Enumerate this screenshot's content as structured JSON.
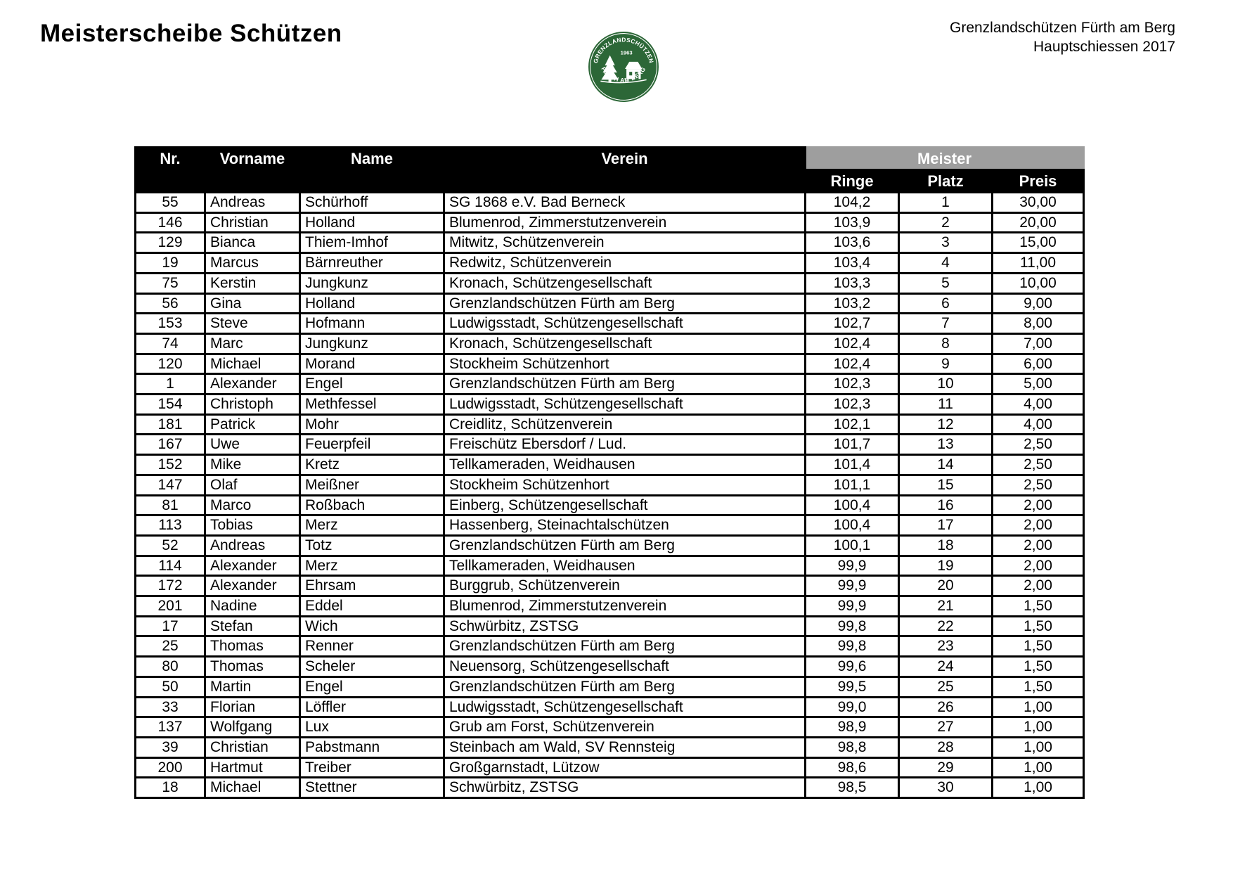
{
  "page": {
    "title": "Meisterscheibe Schützen",
    "org_line1": "Grenzlandschützen Fürth am Berg",
    "org_line2": "Hauptschiessen 2017"
  },
  "logo": {
    "text_top": "GRENZLANDSCHÜTZEN",
    "text_year": "1963",
    "text_bottom": "FÜRTH AM BERG",
    "color": "#2c6737"
  },
  "table": {
    "headers": [
      "Nr.",
      "Vorname",
      "Name",
      "Verein"
    ],
    "group_header": "Meister",
    "meister_headers": [
      "Ringe",
      "Platz",
      "Preis"
    ],
    "header_bg": "#000000",
    "group_header_bg": "#9e9e9e",
    "rows": [
      [
        "55",
        "Andreas",
        "Schürhoff",
        "SG 1868 e.V. Bad Berneck",
        "104,2",
        "1",
        "30,00"
      ],
      [
        "146",
        "Christian",
        "Holland",
        "Blumenrod, Zimmerstutzenverein",
        "103,9",
        "2",
        "20,00"
      ],
      [
        "129",
        "Bianca",
        "Thiem-Imhof",
        "Mitwitz, Schützenverein",
        "103,6",
        "3",
        "15,00"
      ],
      [
        "19",
        "Marcus",
        "Bärnreuther",
        "Redwitz, Schützenverein",
        "103,4",
        "4",
        "11,00"
      ],
      [
        "75",
        "Kerstin",
        "Jungkunz",
        "Kronach, Schützengesellschaft",
        "103,3",
        "5",
        "10,00"
      ],
      [
        "56",
        "Gina",
        "Holland",
        "Grenzlandschützen Fürth am Berg",
        "103,2",
        "6",
        "9,00"
      ],
      [
        "153",
        "Steve",
        "Hofmann",
        "Ludwigsstadt, Schützengesellschaft",
        "102,7",
        "7",
        "8,00"
      ],
      [
        "74",
        "Marc",
        "Jungkunz",
        "Kronach, Schützengesellschaft",
        "102,4",
        "8",
        "7,00"
      ],
      [
        "120",
        "Michael",
        "Morand",
        "Stockheim Schützenhort",
        "102,4",
        "9",
        "6,00"
      ],
      [
        "1",
        "Alexander",
        "Engel",
        "Grenzlandschützen Fürth am Berg",
        "102,3",
        "10",
        "5,00"
      ],
      [
        "154",
        "Christoph",
        "Methfessel",
        "Ludwigsstadt, Schützengesellschaft",
        "102,3",
        "11",
        "4,00"
      ],
      [
        "181",
        "Patrick",
        "Mohr",
        "Creidlitz, Schützenverein",
        "102,1",
        "12",
        "4,00"
      ],
      [
        "167",
        "Uwe",
        "Feuerpfeil",
        "Freischütz Ebersdorf / Lud.",
        "101,7",
        "13",
        "2,50"
      ],
      [
        "152",
        "Mike",
        "Kretz",
        "Tellkameraden, Weidhausen",
        "101,4",
        "14",
        "2,50"
      ],
      [
        "147",
        "Olaf",
        "Meißner",
        "Stockheim Schützenhort",
        "101,1",
        "15",
        "2,50"
      ],
      [
        "81",
        "Marco",
        "Roßbach",
        "Einberg, Schützengesellschaft",
        "100,4",
        "16",
        "2,00"
      ],
      [
        "113",
        "Tobias",
        "Merz",
        "Hassenberg, Steinachtalschützen",
        "100,4",
        "17",
        "2,00"
      ],
      [
        "52",
        "Andreas",
        "Totz",
        "Grenzlandschützen Fürth am Berg",
        "100,1",
        "18",
        "2,00"
      ],
      [
        "114",
        "Alexander",
        "Merz",
        "Tellkameraden, Weidhausen",
        "99,9",
        "19",
        "2,00"
      ],
      [
        "172",
        "Alexander",
        "Ehrsam",
        "Burggrub, Schützenverein",
        "99,9",
        "20",
        "2,00"
      ],
      [
        "201",
        "Nadine",
        "Eddel",
        "Blumenrod, Zimmerstutzenverein",
        "99,9",
        "21",
        "1,50"
      ],
      [
        "17",
        "Stefan",
        "Wich",
        "Schwürbitz, ZSTSG",
        "99,8",
        "22",
        "1,50"
      ],
      [
        "25",
        "Thomas",
        "Renner",
        "Grenzlandschützen Fürth am Berg",
        "99,8",
        "23",
        "1,50"
      ],
      [
        "80",
        "Thomas",
        "Scheler",
        "Neuensorg, Schützengesellschaft",
        "99,6",
        "24",
        "1,50"
      ],
      [
        "50",
        "Martin",
        "Engel",
        "Grenzlandschützen Fürth am Berg",
        "99,5",
        "25",
        "1,50"
      ],
      [
        "33",
        "Florian",
        "Löffler",
        "Ludwigsstadt, Schützengesellschaft",
        "99,0",
        "26",
        "1,00"
      ],
      [
        "137",
        "Wolfgang",
        "Lux",
        "Grub am Forst, Schützenverein",
        "98,9",
        "27",
        "1,00"
      ],
      [
        "39",
        "Christian",
        "Pabstmann",
        "Steinbach am Wald, SV Rennsteig",
        "98,8",
        "28",
        "1,00"
      ],
      [
        "200",
        "Hartmut",
        "Treiber",
        "Großgarnstadt, Lützow",
        "98,6",
        "29",
        "1,00"
      ],
      [
        "18",
        "Michael",
        "Stettner",
        "Schwürbitz, ZSTSG",
        "98,5",
        "30",
        "1,00"
      ]
    ]
  }
}
